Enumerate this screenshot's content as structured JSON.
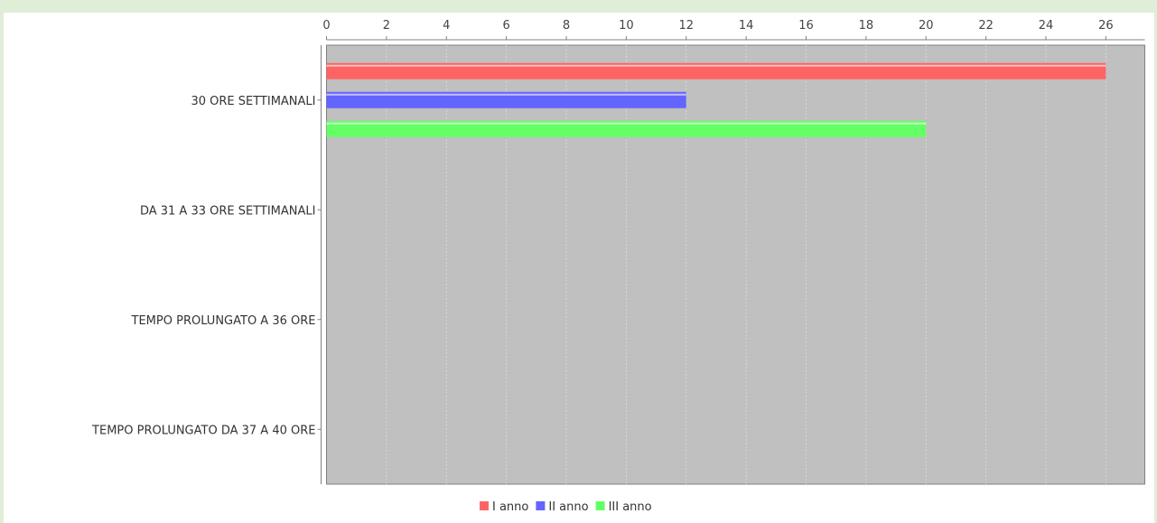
{
  "chart_data": {
    "type": "bar",
    "orientation": "horizontal",
    "axis_position": "top",
    "categories": [
      "30 ORE SETTIMANALI",
      "DA 31 A 33 ORE SETTIMANALI",
      "TEMPO PROLUNGATO A 36 ORE",
      "TEMPO PROLUNGATO DA 37 A 40 ORE"
    ],
    "series": [
      {
        "name": "I anno",
        "color": "#ff6464",
        "values": [
          26,
          0,
          0,
          0
        ]
      },
      {
        "name": "II anno",
        "color": "#6464ff",
        "values": [
          12,
          0,
          0,
          0
        ]
      },
      {
        "name": "III anno",
        "color": "#64ff64",
        "values": [
          20,
          0,
          0,
          0
        ]
      }
    ],
    "ticks": [
      "0",
      "2",
      "4",
      "6",
      "8",
      "10",
      "12",
      "14",
      "16",
      "18",
      "20",
      "22",
      "24",
      "26"
    ],
    "xlim": [
      0,
      27.3
    ],
    "grid": true,
    "plot_background": "#c0c0c0",
    "legend_position": "bottom"
  }
}
